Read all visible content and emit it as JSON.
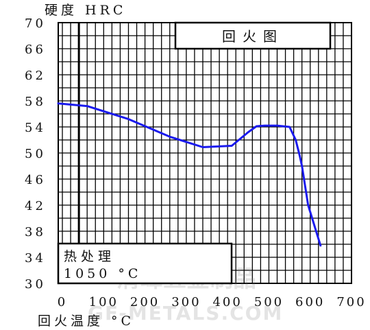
{
  "chart_data": {
    "type": "line",
    "title": "回火图",
    "ylabel": "硬度 HRC",
    "xlabel": "回火温度 °C",
    "xlim": [
      -10,
      700
    ],
    "ylim": [
      30,
      70
    ],
    "x_ticks": [
      "0",
      "100",
      "200",
      "300",
      "400",
      "500",
      "600",
      "700"
    ],
    "y_ticks": [
      "30",
      "34",
      "38",
      "42",
      "46",
      "50",
      "54",
      "58",
      "62",
      "66",
      "70"
    ],
    "grid": true,
    "series": [
      {
        "color": "#1a1aee",
        "x": [
          -10,
          60,
          160,
          260,
          340,
          410,
          450,
          470,
          490,
          520,
          550,
          565,
          575,
          580,
          595,
          625
        ],
        "y": [
          57.6,
          57.2,
          55.2,
          52.5,
          50.9,
          51.1,
          53.2,
          54.1,
          54.2,
          54.2,
          54.0,
          52.0,
          49.5,
          48.0,
          42.0,
          35.8
        ]
      }
    ],
    "annotations": {
      "heat_treatment_label": "热处理",
      "heat_treatment_value": "1050 °C"
    }
  },
  "watermark": {
    "cn": "清峰五金制品",
    "en": "GF-METALS.COM"
  }
}
